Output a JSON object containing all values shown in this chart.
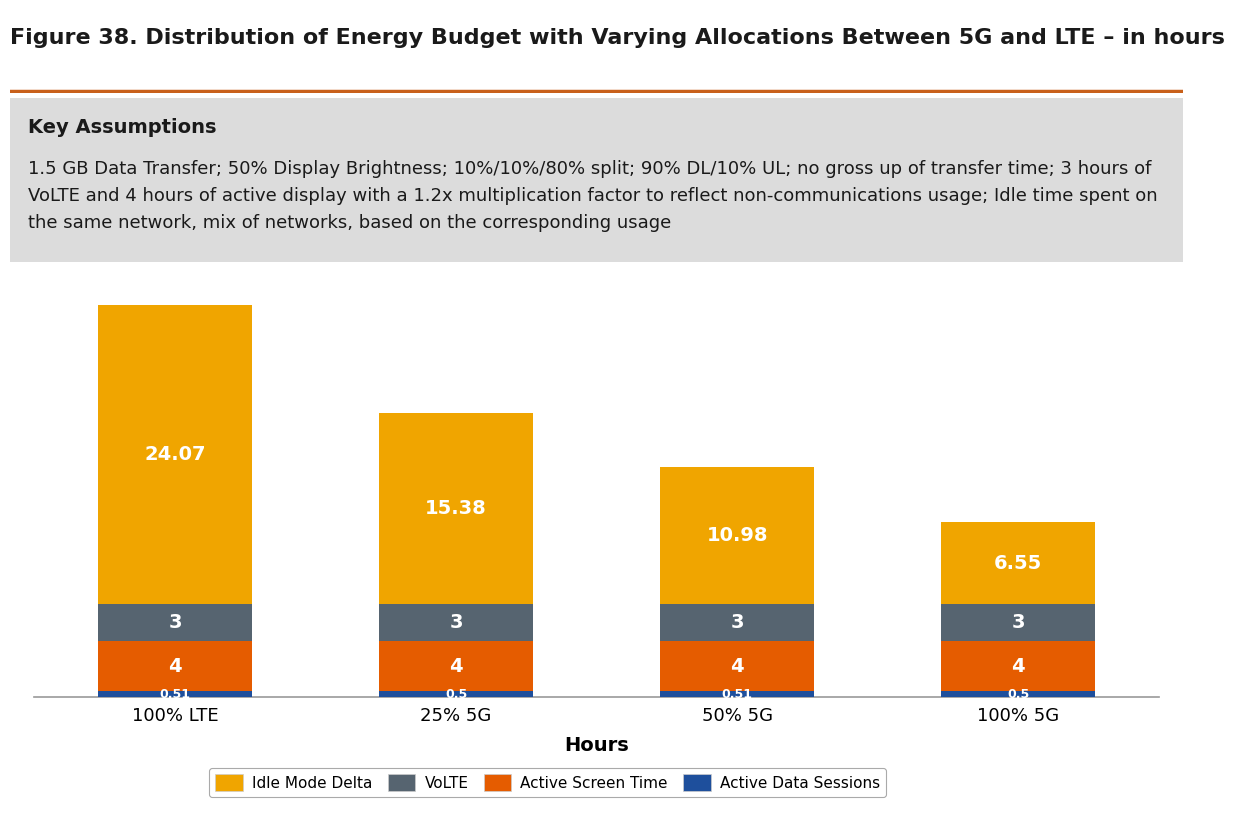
{
  "title": "Figure 38. Distribution of Energy Budget with Varying Allocations Between 5G and LTE – in hours",
  "key_assumptions_title": "Key Assumptions",
  "key_assumptions_text": "1.5 GB Data Transfer; 50% Display Brightness; 10%/10%/80% split; 90% DL/10% UL; no gross up of transfer time; 3 hours of\nVoLTE and 4 hours of active display with a 1.2x multiplication factor to reflect non-communications usage; Idle time spent on\nthe same network, mix of networks, based on the corresponding usage",
  "categories": [
    "100% LTE",
    "25% 5G",
    "50% 5G",
    "100% 5G"
  ],
  "xlabel": "Hours",
  "segments": {
    "Active Data Sessions": [
      0.51,
      0.5,
      0.51,
      0.5
    ],
    "Active Screen Time": [
      4,
      4,
      4,
      4
    ],
    "VoLTE": [
      3,
      3,
      3,
      3
    ],
    "Idle Mode Delta": [
      24.07,
      15.38,
      10.98,
      6.55
    ]
  },
  "segment_colors": {
    "Idle Mode Delta": "#F0A500",
    "VoLTE": "#566470",
    "Active Screen Time": "#E55C00",
    "Active Data Sessions": "#1E4F9C"
  },
  "segment_labels": {
    "Active Data Sessions": [
      "0.51",
      "0.5",
      "0.51",
      "0.5"
    ],
    "Active Screen Time": [
      "4",
      "4",
      "4",
      "4"
    ],
    "VoLTE": [
      "3",
      "3",
      "3",
      "3"
    ],
    "Idle Mode Delta": [
      "24.07",
      "15.38",
      "10.98",
      "6.55"
    ]
  },
  "ylim": [
    0,
    34
  ],
  "bar_width": 0.55,
  "background_color": "#FFFFFF",
  "assumptions_bg_color": "#DCDCDC",
  "title_color": "#1A1A1A",
  "label_color_white": "#FFFFFF",
  "legend_labels": [
    "Idle Mode Delta",
    "VoLTE",
    "Active Screen Time",
    "Active Data Sessions"
  ],
  "title_fontsize": 16,
  "label_fontsize": 13,
  "axis_label_fontsize": 14,
  "bar_label_fontsize": 14,
  "title_line_color": "#C8601A"
}
